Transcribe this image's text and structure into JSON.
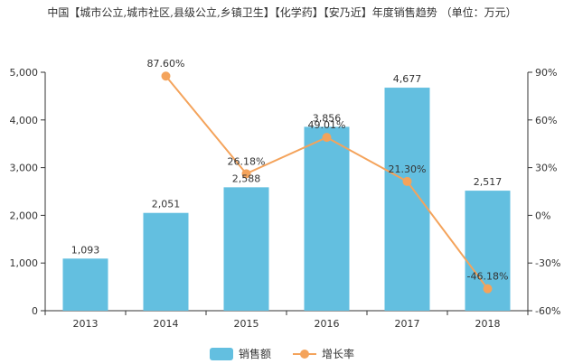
{
  "title": "中国【城市公立,城市社区,县级公立,乡镇卫生】【化学药】【安乃近】年度销售趋势 （单位：万元）",
  "colors": {
    "bar": "#63bfe0",
    "line": "#f4a35b",
    "axis": "#333333"
  },
  "chart_data": {
    "type": "bar",
    "categories": [
      "2013",
      "2014",
      "2015",
      "2016",
      "2017",
      "2018"
    ],
    "series": [
      {
        "name": "销售额",
        "type": "bar",
        "axis": "left",
        "values": [
          1093,
          2051,
          2588,
          3856,
          4677,
          2517
        ],
        "labels": [
          "1,093",
          "2,051",
          "2,588",
          "3,856",
          "4,677",
          "2,517"
        ]
      },
      {
        "name": "增长率",
        "type": "line",
        "axis": "right",
        "values": [
          null,
          87.6,
          26.18,
          49.01,
          21.3,
          -46.18
        ],
        "labels": [
          "",
          "87.60%",
          "26.18%",
          "49.01%",
          "21.30%",
          "-46.18%"
        ]
      }
    ],
    "y_left": {
      "min": 0,
      "max": 5000,
      "ticks": [
        "0",
        "1,000",
        "2,000",
        "3,000",
        "4,000",
        "5,000"
      ]
    },
    "y_right": {
      "min": -60,
      "max": 90,
      "ticks": [
        "-60%",
        "-30%",
        "0%",
        "30%",
        "60%",
        "90%"
      ]
    },
    "legend": [
      "销售额",
      "增长率"
    ],
    "legend_position": "bottom"
  }
}
